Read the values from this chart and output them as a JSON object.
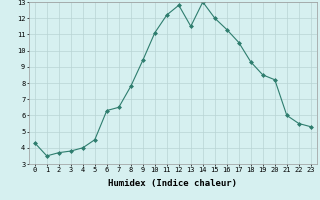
{
  "xlabel": "Humidex (Indice chaleur)",
  "ylabel": "",
  "x": [
    0,
    1,
    2,
    3,
    4,
    5,
    6,
    7,
    8,
    9,
    10,
    11,
    12,
    13,
    14,
    15,
    16,
    17,
    18,
    19,
    20,
    21,
    22,
    23
  ],
  "y": [
    4.3,
    3.5,
    3.7,
    3.8,
    4.0,
    4.5,
    6.3,
    6.5,
    7.8,
    9.4,
    11.1,
    12.2,
    12.8,
    11.5,
    13.0,
    12.0,
    11.3,
    10.5,
    9.3,
    8.5,
    8.2,
    6.0,
    5.5,
    5.3
  ],
  "line_color": "#2e7d6e",
  "marker": "D",
  "marker_size": 2,
  "bg_color": "#d6f0f0",
  "grid_color": "#b8d4d4",
  "xlim": [
    -0.5,
    23.5
  ],
  "ylim": [
    3,
    13
  ],
  "yticks": [
    3,
    4,
    5,
    6,
    7,
    8,
    9,
    10,
    11,
    12,
    13
  ],
  "xticks": [
    0,
    1,
    2,
    3,
    4,
    5,
    6,
    7,
    8,
    9,
    10,
    11,
    12,
    13,
    14,
    15,
    16,
    17,
    18,
    19,
    20,
    21,
    22,
    23
  ],
  "tick_fontsize": 5,
  "xlabel_fontsize": 6.5,
  "xlabel_fontweight": "bold"
}
